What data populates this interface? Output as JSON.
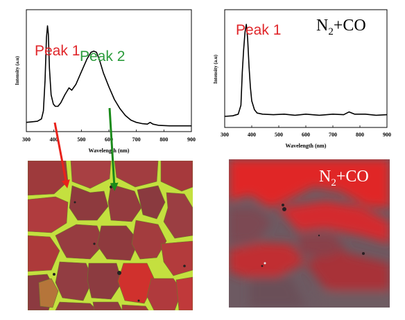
{
  "colors": {
    "peak1": "#e0262a",
    "peak2": "#2a9b3a",
    "arrow_red": "#e8221b",
    "arrow_green": "#1a8a1a",
    "grain_red": "#b81f24",
    "boundary_green": "#b8d83a",
    "grey": "#666666"
  },
  "chart_data": [
    {
      "type": "line",
      "xlabel": "Wavelength (nm)",
      "ylabel": "Intensity (a.u)",
      "x_ticks": [
        "300",
        "400",
        "500",
        "600",
        "700",
        "800",
        "900"
      ],
      "xlim": [
        300,
        900
      ],
      "ylim": [
        0,
        1
      ],
      "annotations": [
        {
          "text": "Peak 1",
          "color": "peak1"
        },
        {
          "text": "Peak 2",
          "color": "peak2"
        }
      ],
      "series": [
        {
          "x": [
            300,
            340,
            355,
            362,
            368,
            373,
            377,
            380,
            384,
            390,
            398,
            405,
            415,
            425,
            440,
            455,
            465,
            480,
            500,
            520,
            535,
            545,
            555,
            565,
            580,
            600,
            620,
            640,
            660,
            680,
            700,
            720,
            740,
            750,
            760,
            780,
            820,
            860,
            900
          ],
          "y": [
            0.08,
            0.09,
            0.11,
            0.18,
            0.45,
            0.82,
            0.92,
            0.85,
            0.55,
            0.32,
            0.24,
            0.22,
            0.22,
            0.25,
            0.32,
            0.38,
            0.36,
            0.41,
            0.52,
            0.63,
            0.69,
            0.7,
            0.69,
            0.63,
            0.51,
            0.39,
            0.28,
            0.2,
            0.14,
            0.1,
            0.08,
            0.07,
            0.065,
            0.08,
            0.065,
            0.055,
            0.05,
            0.05,
            0.05
          ]
        }
      ]
    },
    {
      "type": "line",
      "xlabel": "Wavelength (nm)",
      "ylabel": "Intensity (a.u)",
      "x_ticks": [
        "300",
        "400",
        "500",
        "600",
        "700",
        "800",
        "900"
      ],
      "xlim": [
        300,
        900
      ],
      "ylim": [
        0,
        1
      ],
      "annotations": [
        {
          "text": "Peak 1",
          "color": "peak1"
        }
      ],
      "legend_text": {
        "base": "N",
        "sub": "2",
        "rest": "+CO"
      },
      "series": [
        {
          "x": [
            300,
            330,
            350,
            360,
            365,
            370,
            375,
            380,
            385,
            390,
            395,
            400,
            410,
            420,
            440,
            480,
            520,
            560,
            600,
            650,
            700,
            740,
            760,
            780,
            820,
            860,
            900
          ],
          "y": [
            0.1,
            0.105,
            0.12,
            0.2,
            0.5,
            0.7,
            0.86,
            0.93,
            0.8,
            0.55,
            0.36,
            0.24,
            0.16,
            0.13,
            0.12,
            0.115,
            0.12,
            0.11,
            0.12,
            0.11,
            0.12,
            0.115,
            0.14,
            0.12,
            0.12,
            0.11,
            0.115
          ]
        }
      ]
    }
  ],
  "image_right_label": {
    "base": "N",
    "sub": "2",
    "rest": "+CO"
  }
}
